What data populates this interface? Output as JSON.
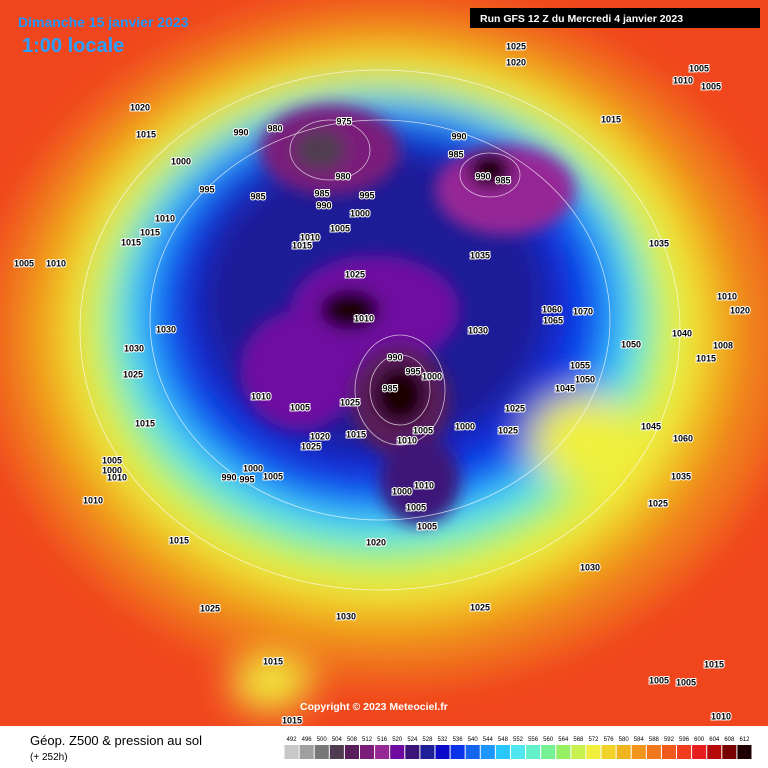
{
  "header": {
    "date": "Dimanche 15 janvier 2023",
    "time": "1:00 locale",
    "run": "Run GFS 12 Z du Mercredi 4 janvier 2023"
  },
  "copyright": "Copyright © 2023 Meteociel.fr",
  "footer": {
    "title": "Géop. Z500 & pression au sol",
    "lead": "(+ 252h)"
  },
  "color_scale": {
    "values": [
      492,
      496,
      500,
      504,
      508,
      512,
      516,
      520,
      524,
      528,
      532,
      536,
      540,
      544,
      548,
      552,
      556,
      560,
      564,
      568,
      572,
      576,
      580,
      584,
      588,
      592,
      596,
      600,
      604,
      608,
      612
    ],
    "colors": [
      "#c8c8c8",
      "#a0a0a0",
      "#787878",
      "#503c50",
      "#5a1e5a",
      "#7a1e7a",
      "#962896",
      "#6e0aa0",
      "#3c1478",
      "#1e1e96",
      "#0a0ac8",
      "#0a32e6",
      "#1464f0",
      "#1e96ff",
      "#28c8ff",
      "#50e6f0",
      "#64f0c8",
      "#78f096",
      "#96f064",
      "#c8f050",
      "#f0f03c",
      "#f0d228",
      "#f0b41e",
      "#f0961e",
      "#f0781e",
      "#f05a1e",
      "#f03c1e",
      "#e61e1e",
      "#b40a0a",
      "#780000",
      "#1e0000"
    ]
  },
  "isobar_labels": [
    "1020",
    "1015",
    "1000",
    "995",
    "990",
    "980",
    "975",
    "985",
    "980",
    "985",
    "990",
    "995",
    "1000",
    "1005",
    "1010",
    "1015",
    "1010",
    "1015",
    "1015",
    "1005",
    "1010",
    "1030",
    "1030",
    "1025",
    "1015",
    "1005",
    "1000",
    "1010",
    "1010",
    "1025",
    "1010",
    "990",
    "995",
    "1000",
    "985",
    "1010",
    "1005",
    "1025",
    "1020",
    "1015",
    "1025",
    "1010",
    "1005",
    "1000",
    "990",
    "995",
    "1000",
    "1005",
    "1000",
    "1010",
    "1005",
    "1005",
    "1020",
    "1015",
    "1025",
    "1030",
    "1015",
    "1015",
    "1025",
    "1030",
    "1025",
    "1035",
    "1045",
    "1060",
    "1025",
    "1025",
    "1030",
    "1035",
    "990",
    "985",
    "990",
    "985",
    "1025",
    "1020",
    "1015",
    "1010",
    "1005",
    "1005",
    "1035",
    "1010",
    "1020",
    "1040",
    "1060",
    "1065",
    "1070",
    "1050",
    "1055",
    "1050",
    "1045",
    "1008",
    "1015",
    "1005",
    "1005",
    "1015",
    "1010"
  ]
}
